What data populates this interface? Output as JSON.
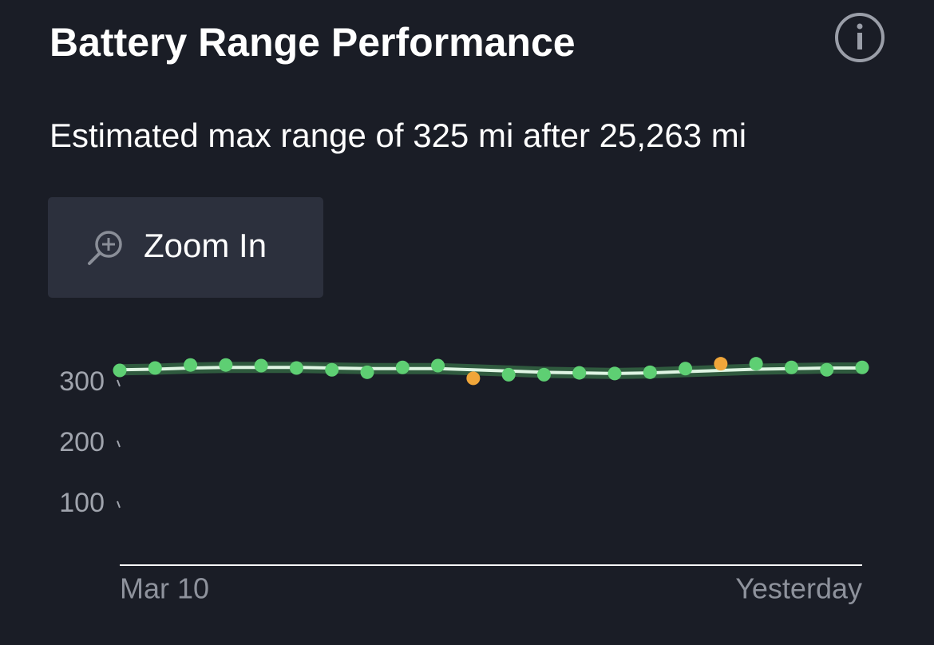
{
  "header": {
    "title": "Battery Range Performance",
    "subtitle": "Estimated max range of 325 mi after 25,263 mi"
  },
  "button": {
    "label": "Zoom In"
  },
  "chart_data": {
    "type": "line",
    "categories": [
      "Mar 10",
      null,
      null,
      null,
      null,
      null,
      null,
      null,
      null,
      null,
      null,
      null,
      null,
      null,
      null,
      null,
      null,
      null,
      null,
      null,
      null,
      "Yesterday"
    ],
    "series": [
      {
        "color": "#dff5e3",
        "values": [
          322,
          323,
          325,
          326,
          326,
          326,
          325,
          324,
          324,
          324,
          322,
          320,
          318,
          317,
          316,
          317,
          319,
          321,
          323,
          324,
          325,
          325
        ]
      },
      {
        "color": "#5ecf73",
        "colors": [
          "#5ecf73",
          "#5ecf73",
          "#5ecf73",
          "#5ecf73",
          "#5ecf73",
          "#5ecf73",
          "#5ecf73",
          "#5ecf73",
          "#5ecf73",
          "#5ecf73",
          "#f0a63a",
          "#5ecf73",
          "#5ecf73",
          "#5ecf73",
          "#5ecf73",
          "#5ecf73",
          "#5ecf73",
          "#f0a63a",
          "#5ecf73",
          "#5ecf73",
          "#5ecf73",
          "#5ecf73"
        ],
        "values": [
          321,
          325,
          330,
          330,
          329,
          325,
          322,
          318,
          326,
          329,
          308,
          314,
          314,
          317,
          316,
          318,
          324,
          332,
          332,
          326,
          322,
          326
        ]
      }
    ],
    "ylim": [
      0,
      350
    ],
    "yticks": [
      100,
      200,
      300
    ]
  }
}
